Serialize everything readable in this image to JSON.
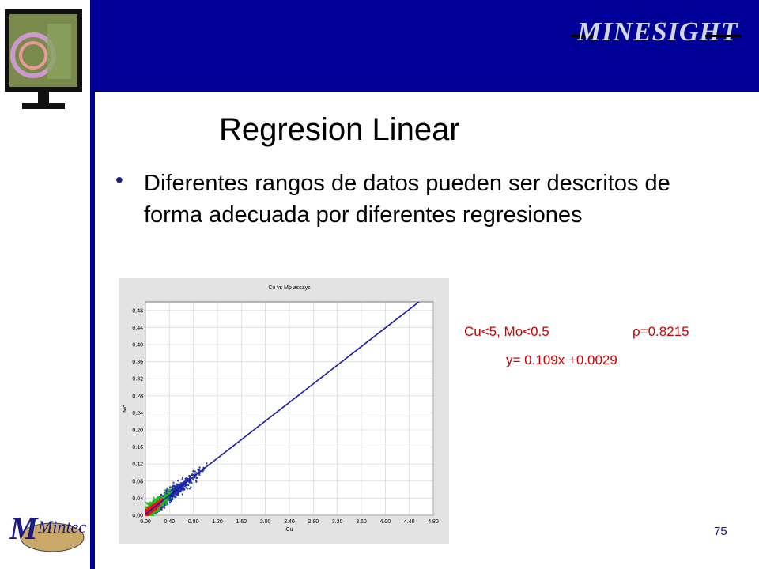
{
  "brand": {
    "logo_text": "MINESIGHT",
    "footer_logo": "Mintec"
  },
  "slide": {
    "title": "Regresion Linear",
    "bullet": "Diferentes rangos de datos pueden ser descritos de forma adecuada por diferentes regresiones",
    "annotation_range": "Cu<5, Mo<0.5",
    "annotation_rho": "ρ=0.8215",
    "annotation_eq": "y= 0.109x +0.0029",
    "page_number": "75"
  },
  "colors": {
    "banner": "#000099",
    "points_far": "#1f2fa8",
    "points_mid": "#22bb22",
    "points_dense": "#ee1111",
    "fit_line": "#1a1aaa",
    "annotation": "#cc0000"
  },
  "chart_data": {
    "type": "scatter",
    "title": "Cu vs Mo assays",
    "xlabel": "Cu",
    "ylabel": "Mo",
    "xlim": [
      0,
      4.8
    ],
    "ylim": [
      0,
      0.5
    ],
    "x_ticks": [
      "0.00",
      "0.40",
      "0.80",
      "1.20",
      "1.60",
      "2.00",
      "2.40",
      "2.80",
      "3.20",
      "3.60",
      "4.00",
      "4.40",
      "4.80"
    ],
    "y_ticks": [
      "0.00",
      "0.04",
      "0.08",
      "0.12",
      "0.16",
      "0.20",
      "0.24",
      "0.28",
      "0.32",
      "0.36",
      "0.40",
      "0.44",
      "0.48"
    ],
    "grid": true,
    "fit_line": {
      "slope": 0.109,
      "intercept": 0.0029
    }
  }
}
